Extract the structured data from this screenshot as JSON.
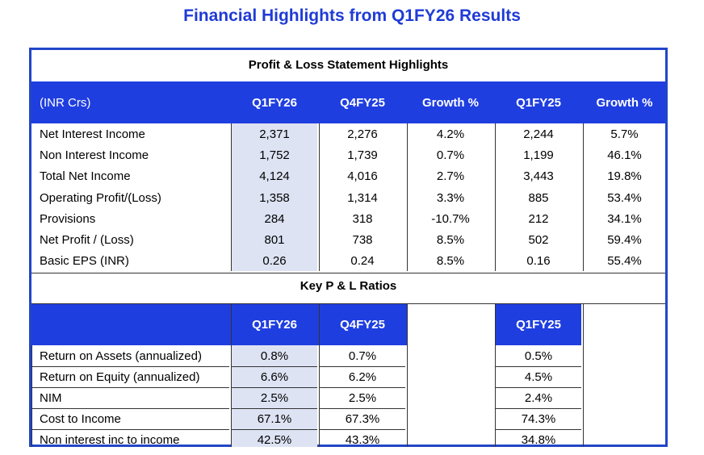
{
  "title": "Financial Highlights from Q1FY26 Results",
  "pl": {
    "section_title": "Profit & Loss Statement Highlights",
    "headers": [
      "(INR Crs)",
      "Q1FY26",
      "Q4FY25",
      "Growth %",
      "Q1FY25",
      "Growth %"
    ],
    "rows": [
      [
        "Net Interest Income",
        "2,371",
        "2,276",
        "4.2%",
        "2,244",
        "5.7%"
      ],
      [
        "Non Interest Income",
        "1,752",
        "1,739",
        "0.7%",
        "1,199",
        "46.1%"
      ],
      [
        "Total Net Income",
        "4,124",
        "4,016",
        "2.7%",
        "3,443",
        "19.8%"
      ],
      [
        "Operating Profit/(Loss)",
        "1,358",
        "1,314",
        "3.3%",
        "885",
        "53.4%"
      ],
      [
        "Provisions",
        "284",
        "318",
        "-10.7%",
        "212",
        "34.1%"
      ],
      [
        "Net Profit / (Loss)",
        "801",
        "738",
        "8.5%",
        "502",
        "59.4%"
      ],
      [
        "Basic EPS (INR)",
        "0.26",
        "0.24",
        "8.5%",
        "0.16",
        "55.4%"
      ]
    ]
  },
  "ratios": {
    "section_title": "Key P & L Ratios",
    "headers": [
      "Q1FY26",
      "Q4FY25",
      "Q1FY25"
    ],
    "rows": [
      [
        "Return on Assets (annualized)",
        "0.8%",
        "0.7%",
        "0.5%"
      ],
      [
        "Return on Equity (annualized)",
        "6.6%",
        "6.2%",
        "4.5%"
      ],
      [
        "NIM",
        "2.5%",
        "2.5%",
        "2.4%"
      ],
      [
        "Cost to Income",
        "67.1%",
        "67.3%",
        "74.3%"
      ],
      [
        "Non interest inc to income",
        "42.5%",
        "43.3%",
        "34.8%"
      ]
    ]
  },
  "colors": {
    "header_blue": "#1f3ee0",
    "title_blue": "#1f3bd6",
    "highlight": "#dde3f3"
  }
}
